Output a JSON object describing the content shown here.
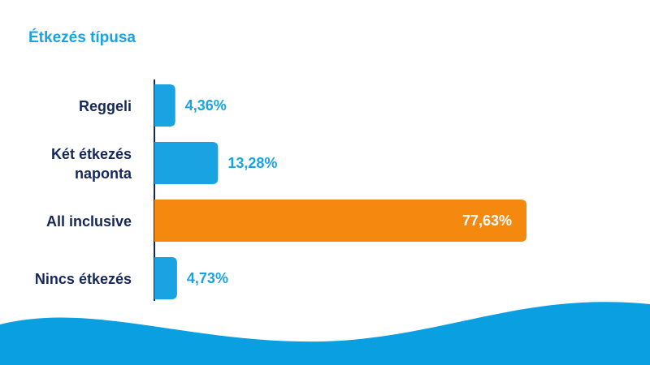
{
  "chart_data": {
    "type": "bar",
    "orientation": "horizontal",
    "title": "Étkezés típusa",
    "categories": [
      "Reggeli",
      "Két étkezés naponta",
      "All inclusive",
      "Nincs étkezés"
    ],
    "values": [
      4.36,
      13.28,
      77.63,
      4.73
    ],
    "value_labels": [
      "4,36%",
      "13,28%",
      "77,63%",
      "4,73%"
    ],
    "colors": [
      "#1aa3e2",
      "#1aa3e2",
      "#f5890f",
      "#1aa3e2"
    ]
  }
}
